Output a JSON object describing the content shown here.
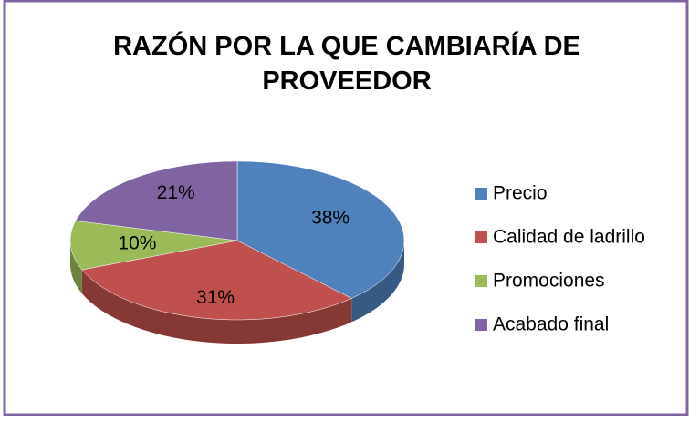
{
  "chart_data": {
    "type": "pie",
    "title": "RAZÓN POR LA QUE CAMBIARÍA DE PROVEEDOR",
    "categories": [
      "Precio",
      "Calidad de ladrillo",
      "Promociones",
      "Acabado final"
    ],
    "values": [
      38,
      31,
      10,
      21
    ],
    "value_labels": [
      "38%",
      "31%",
      "10%",
      "21%"
    ],
    "colors": [
      "#4f81bd",
      "#c0504d",
      "#9bbb59",
      "#8064a2"
    ],
    "legend": "right"
  }
}
